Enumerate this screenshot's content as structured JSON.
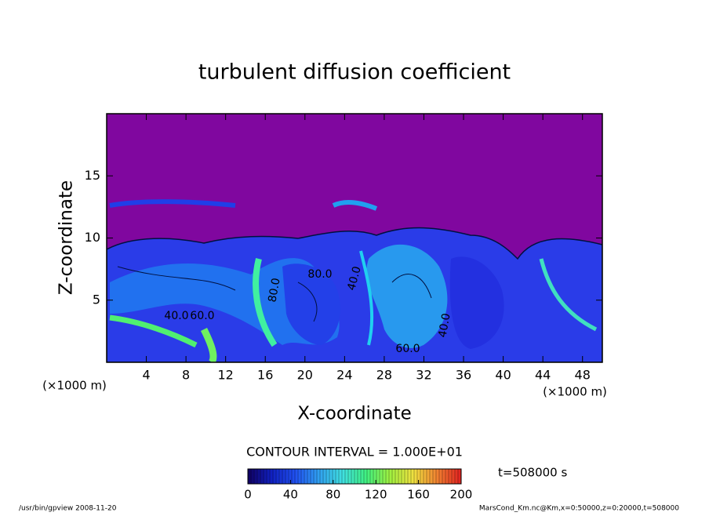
{
  "chart_data": {
    "type": "contour",
    "title": "turbulent diffusion coefficient",
    "xlabel": "X-coordinate",
    "ylabel": "Z-coordinate",
    "xunit": "(×1000 m)",
    "xlim": [
      0,
      50
    ],
    "xticks": [
      4,
      8,
      12,
      16,
      20,
      24,
      28,
      32,
      36,
      40,
      44,
      48
    ],
    "ylim": [
      0,
      20
    ],
    "yticks": [
      5,
      10,
      15
    ],
    "contour_interval": "CONTOUR INTERVAL = 1.000E+01",
    "contour_labels": [
      "40.0",
      "60.0",
      "80.0",
      "80.0",
      "60.0",
      "40.0",
      "40.0"
    ],
    "time_label": "t=508000 s",
    "colorbar": {
      "lim": [
        0,
        200
      ],
      "ticks": [
        0,
        40,
        80,
        120,
        160,
        200
      ],
      "colors": [
        "#100060",
        "#1020c0",
        "#2050f0",
        "#30a0f0",
        "#40e0e0",
        "#40f080",
        "#a0f040",
        "#f0e040",
        "#f08030",
        "#e02020"
      ]
    },
    "footer_left": "/usr/bin/gpview   2008-11-20",
    "footer_right": "MarsCond_Km.nc@Km,x=0:50000,z=0:20000,t=508000"
  }
}
